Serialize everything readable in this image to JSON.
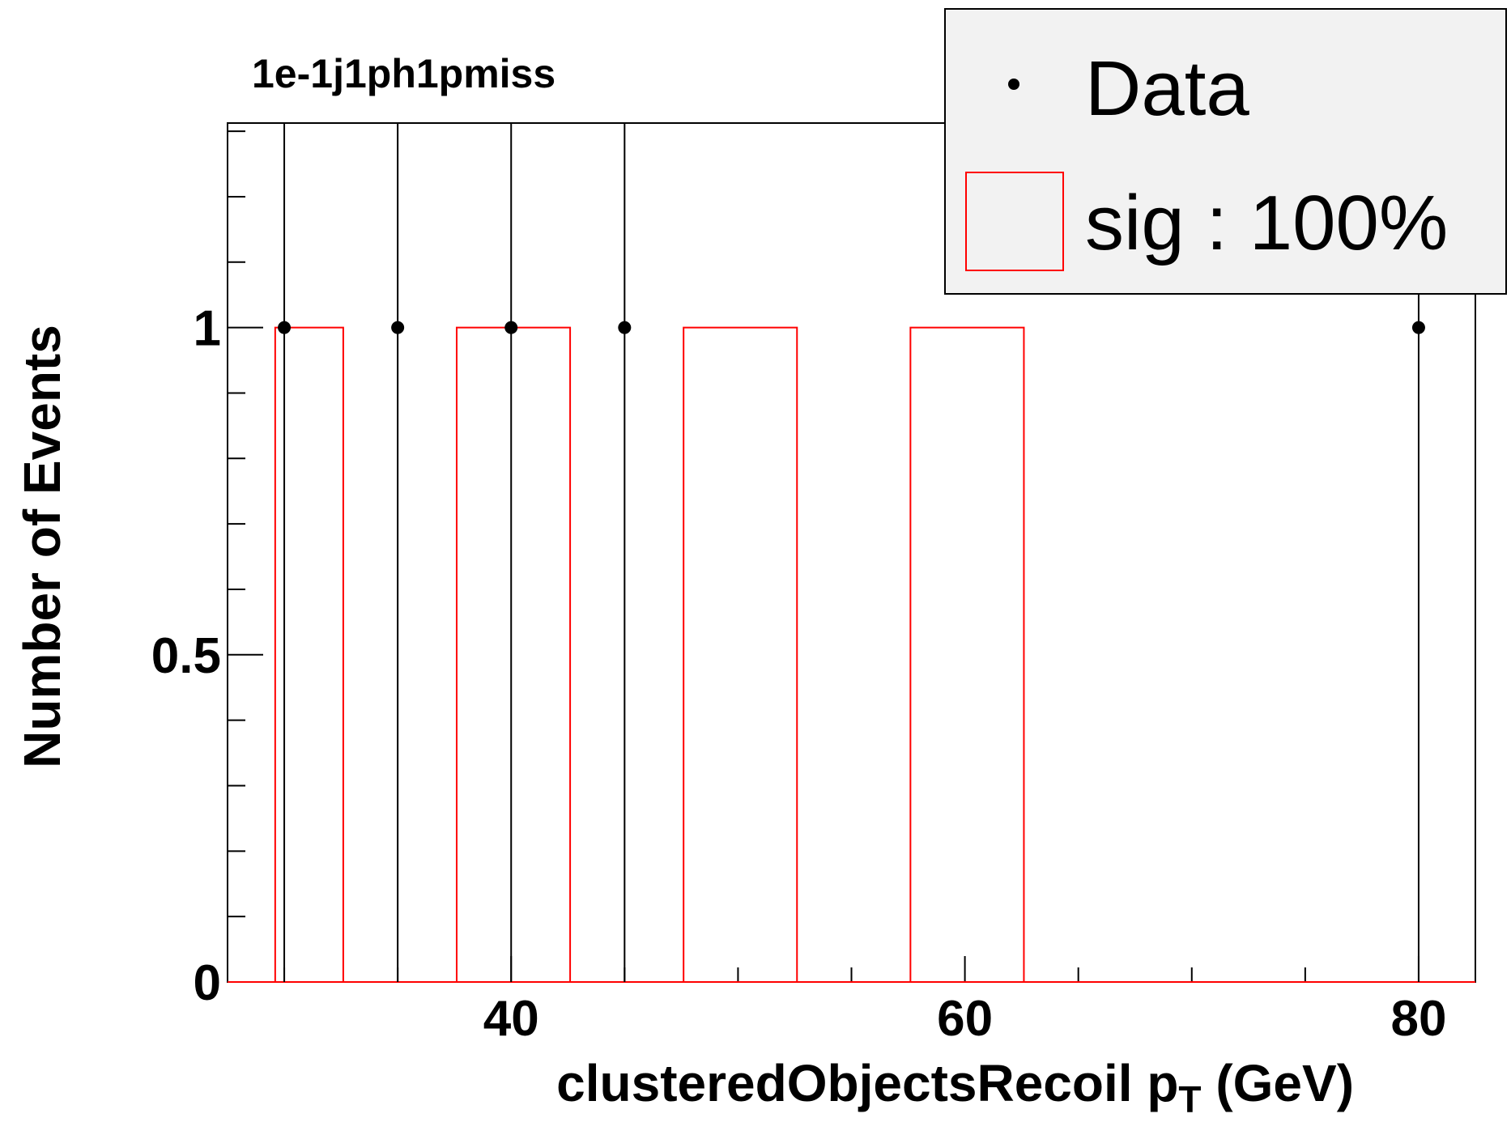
{
  "chart_data": {
    "type": "bar",
    "title": "1e-1j1ph1pmiss",
    "xlabel": {
      "main": "clusteredObjectsRecoil p",
      "sub": "T",
      "unit": " (GeV)"
    },
    "ylabel": "Number of Events",
    "xlim": [
      27.5,
      82.5
    ],
    "ylim": [
      0,
      1.3125
    ],
    "x_ticks": [
      {
        "value": 40,
        "label": "40"
      },
      {
        "value": 60,
        "label": "60"
      },
      {
        "value": 80,
        "label": "80"
      }
    ],
    "x_minor_step": 5,
    "y_ticks": [
      {
        "value": 0,
        "label": "0"
      },
      {
        "value": 0.5,
        "label": "0.5"
      },
      {
        "value": 1,
        "label": "1"
      }
    ],
    "y_minor_step": 0.1,
    "grid": false,
    "legend": {
      "position": "top-right",
      "entries": [
        {
          "label": "Data",
          "style": "marker"
        },
        {
          "label": "sig : 100%",
          "style": "box"
        }
      ]
    },
    "series": [
      {
        "name": "Data",
        "kind": "points",
        "color": "#000000",
        "points": [
          {
            "x": 30,
            "y": 1
          },
          {
            "x": 35,
            "y": 1
          },
          {
            "x": 40,
            "y": 1
          },
          {
            "x": 45,
            "y": 1
          },
          {
            "x": 80,
            "y": 1
          }
        ]
      },
      {
        "name": "sig : 100%",
        "kind": "histogram",
        "color": "#ff0000",
        "bins": [
          {
            "x0": 29.6,
            "x1": 32.6,
            "y": 1
          },
          {
            "x0": 37.6,
            "x1": 42.6,
            "y": 1
          },
          {
            "x0": 47.6,
            "x1": 52.6,
            "y": 1
          },
          {
            "x0": 57.6,
            "x1": 62.6,
            "y": 1
          }
        ]
      }
    ]
  }
}
